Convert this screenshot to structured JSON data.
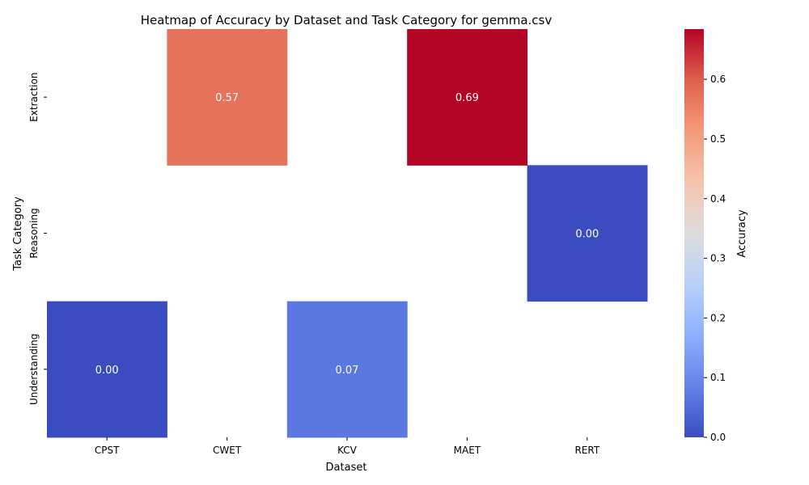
{
  "chart_data": {
    "type": "heatmap",
    "title": "Heatmap of Accuracy by Dataset and Task Category for gemma.csv",
    "xlabel": "Dataset",
    "ylabel": "Task Category",
    "x_categories": [
      "CPST",
      "CWET",
      "KCV",
      "MAET",
      "RERT"
    ],
    "y_categories": [
      "Extraction",
      "Reasoning",
      "Understanding"
    ],
    "values": [
      [
        null,
        0.57,
        null,
        0.69,
        null
      ],
      [
        null,
        null,
        null,
        null,
        0.0
      ],
      [
        0.0,
        null,
        0.07,
        null,
        null
      ]
    ],
    "value_labels": [
      [
        null,
        "0.57",
        null,
        "0.69",
        null
      ],
      [
        null,
        null,
        null,
        null,
        "0.00"
      ],
      [
        "0.00",
        null,
        "0.07",
        null,
        null
      ]
    ],
    "colormap": "coolwarm",
    "vmin": 0.0,
    "vmax": 0.6842,
    "colorbar": {
      "label": "Accuracy",
      "ticks": [
        0.0,
        0.1,
        0.2,
        0.3,
        0.4,
        0.5,
        0.6
      ],
      "tick_labels": [
        "0.0",
        "0.1",
        "0.2",
        "0.3",
        "0.4",
        "0.5",
        "0.6"
      ]
    },
    "missing_cells": "blank"
  }
}
